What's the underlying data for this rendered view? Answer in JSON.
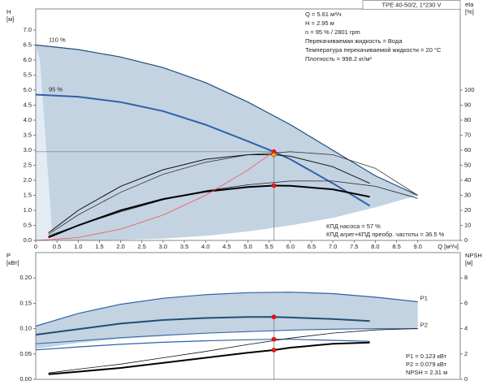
{
  "chart_data": [
    {
      "type": "line",
      "title": "TPE 40-50/2, 1*230 V",
      "ylabel": [
        "H",
        "[м]"
      ],
      "y2label": [
        "eta",
        "[%]"
      ],
      "xlabel": "Q [м³/ч]",
      "info": [
        "Q = 5.61 м³/ч",
        "H = 2.95 м",
        "n = 95 % / 2801 rpm",
        "Перекачиваемая жидкость = Вода",
        "Температура перекачиваемой жидкости = 20 °C",
        "Плотность = 998.2 кг/м³"
      ],
      "notes": [
        "КПД насоса = 57 %",
        "КПД агрег+КПД преобр. частоты = 36.5 %"
      ],
      "xlim": [
        0,
        10
      ],
      "ylim": [
        0,
        7.7
      ],
      "y2lim": [
        0,
        154
      ],
      "xticks": [
        0,
        0.5,
        {
          "value": 1,
          "label": "1.0"
        },
        1.5,
        {
          "value": 2,
          "label": "2.0"
        },
        2.5,
        {
          "value": 3,
          "label": "3.0"
        },
        3.5,
        {
          "value": 4,
          "label": "4.0"
        },
        4.5,
        {
          "value": 5,
          "label": "5.0"
        },
        5.5,
        {
          "value": 6,
          "label": "6.0"
        },
        6.5,
        {
          "value": 7,
          "label": "7.0"
        },
        7.5,
        {
          "value": 8,
          "label": "8.0"
        },
        8.5,
        {
          "value": 9,
          "label": "9.0"
        }
      ],
      "yticks": [
        {
          "value": 0,
          "label": "0.0"
        },
        0.5,
        {
          "value": 1,
          "label": "1.0"
        },
        1.5,
        {
          "value": 2,
          "label": "2.0"
        },
        2.5,
        {
          "value": 3,
          "label": "3.0"
        },
        3.5,
        {
          "value": 4,
          "label": "4.0"
        },
        4.5,
        {
          "value": 5,
          "label": "5.0"
        },
        5.5,
        {
          "value": 6,
          "label": "6.0"
        },
        6.5,
        {
          "value": 7,
          "label": "7.0"
        }
      ],
      "y2ticks": [
        0,
        10,
        20,
        30,
        40,
        50,
        60,
        70,
        80,
        90,
        100
      ],
      "grid": false,
      "series": [
        {
          "kind": "area",
          "color": "#e3ecf4",
          "x": [
            0,
            0.5,
            0.5,
            0
          ],
          "values": [
            0,
            0,
            6.45,
            6.5
          ]
        },
        {
          "kind": "area",
          "color": "#c3d3e2",
          "x": [
            0,
            1,
            2,
            3,
            4,
            5,
            6,
            7,
            8,
            9,
            8,
            7,
            6,
            5,
            4,
            3,
            2,
            1,
            0.4,
            0.3,
            0.2,
            0.1
          ],
          "values": [
            6.5,
            6.35,
            6.1,
            5.75,
            5.25,
            4.6,
            3.85,
            3.0,
            2.15,
            1.5,
            1.1,
            0.75,
            0.5,
            0.3,
            0.15,
            0.06,
            0.02,
            0,
            0,
            2,
            4,
            6
          ]
        },
        {
          "kind": "line",
          "name": "110 %",
          "color": "#1f4e79",
          "width": 1.2,
          "x": [
            0,
            1,
            2,
            3,
            4,
            5,
            6,
            7,
            8,
            9
          ],
          "values": [
            6.5,
            6.35,
            6.1,
            5.75,
            5.25,
            4.6,
            3.85,
            3.0,
            2.15,
            1.5
          ]
        },
        {
          "kind": "line",
          "name": "95 %",
          "color": "#2e62a8",
          "width": 2,
          "x": [
            0,
            1,
            2,
            3,
            4,
            5,
            5.61,
            6,
            7,
            7.87
          ],
          "values": [
            4.85,
            4.78,
            4.6,
            4.3,
            3.85,
            3.3,
            2.95,
            2.7,
            1.9,
            1.15
          ]
        },
        {
          "kind": "line",
          "axis": "y2",
          "color": "#333333",
          "width": 0.8,
          "x": [
            0.3,
            1,
            2,
            3,
            4,
            5,
            6,
            7,
            8,
            9
          ],
          "values": [
            4,
            17,
            32,
            44,
            52,
            57,
            59,
            57,
            48,
            30
          ]
        },
        {
          "kind": "line",
          "axis": "y2",
          "color": "#222222",
          "width": 0.8,
          "x": [
            0.3,
            1,
            2,
            3,
            4,
            5,
            6,
            7,
            8,
            9
          ],
          "values": [
            3,
            10,
            19,
            27,
            33,
            37,
            39.5,
            39.5,
            36,
            28
          ]
        },
        {
          "kind": "line",
          "axis": "y2",
          "color": "#111111",
          "width": 1,
          "x": [
            0.3,
            1,
            2,
            3,
            4,
            5,
            5.61,
            6,
            7,
            7.87
          ],
          "values": [
            5,
            20,
            36,
            47,
            54,
            57,
            57,
            56,
            49,
            38
          ]
        },
        {
          "kind": "line",
          "axis": "y2",
          "color": "#000000",
          "width": 2,
          "x": [
            0.3,
            1,
            2,
            3,
            4,
            5,
            5.61,
            6,
            7,
            7.87
          ],
          "values": [
            2,
            10,
            20,
            27.5,
            32.5,
            35.5,
            36.5,
            36.3,
            34,
            29
          ]
        },
        {
          "kind": "line",
          "color": "#ff5050",
          "width": 0.8,
          "x": [
            0,
            1,
            2,
            3,
            4,
            5,
            5.61
          ],
          "values": [
            0,
            0.094,
            0.375,
            0.844,
            1.5,
            2.343,
            2.95
          ]
        },
        {
          "kind": "marker",
          "axis": "y2",
          "color": "#ff0000",
          "x": [
            5.61
          ],
          "values": [
            36.5
          ]
        },
        {
          "kind": "marker",
          "color": "#ff0000",
          "guides": true,
          "x": [
            5.61
          ],
          "values": [
            2.95
          ]
        },
        {
          "kind": "marker",
          "axis": "y2",
          "color": "#ffcc00",
          "x": [
            5.61
          ],
          "values": [
            57
          ]
        }
      ]
    },
    {
      "type": "line",
      "ylabel": [
        "P",
        "[кВт]"
      ],
      "y2label": [
        "NPSH",
        "[м]"
      ],
      "info": [
        "P1 = 0.123 кВт",
        "P2 = 0.079 кВт",
        "NPSH = 2.31 м"
      ],
      "xlim": [
        0,
        10
      ],
      "ylim": [
        0,
        0.25
      ],
      "y2lim": [
        0,
        10
      ],
      "yticks": [
        {
          "value": 0,
          "label": "0.00"
        },
        0.05,
        {
          "value": 0.1,
          "label": "0.10"
        },
        0.15,
        {
          "value": 0.2,
          "label": "0.20"
        }
      ],
      "y2ticks": [
        0,
        2,
        4,
        6,
        8
      ],
      "grid": false,
      "series": [
        {
          "kind": "area",
          "color": "#c3d3e2",
          "x": [
            0,
            1,
            2,
            3,
            4,
            5,
            6,
            7,
            8,
            9,
            9,
            8,
            6,
            4,
            2,
            1,
            0
          ],
          "values": [
            0.105,
            0.13,
            0.148,
            0.16,
            0.167,
            0.171,
            0.172,
            0.169,
            0.162,
            0.153,
            0.1,
            0.099,
            0.096,
            0.09,
            0.08,
            0.072,
            0.06
          ]
        },
        {
          "kind": "line",
          "name": "P1",
          "color": "#2e62a8",
          "width": 1.2,
          "x": [
            0,
            1,
            2,
            3,
            4,
            5,
            6,
            7,
            8,
            9
          ],
          "values": [
            0.105,
            0.13,
            0.148,
            0.16,
            0.167,
            0.171,
            0.172,
            0.169,
            0.162,
            0.153
          ]
        },
        {
          "kind": "line",
          "color": "#1f4e79",
          "width": 2,
          "x": [
            0,
            1,
            2,
            3,
            4,
            5,
            5.61,
            6,
            7,
            7.87
          ],
          "values": [
            0.088,
            0.099,
            0.11,
            0.117,
            0.121,
            0.123,
            0.123,
            0.122,
            0.119,
            0.115
          ]
        },
        {
          "kind": "line",
          "name": "P2",
          "color": "#2e62a8",
          "width": 1,
          "x": [
            0,
            1,
            2,
            3,
            4,
            5,
            6,
            7,
            8,
            9
          ],
          "values": [
            0.07,
            0.076,
            0.082,
            0.087,
            0.091,
            0.094,
            0.097,
            0.099,
            0.1,
            0.1
          ]
        },
        {
          "kind": "line",
          "color": "#2e62a8",
          "width": 1.2,
          "x": [
            0,
            1,
            2,
            3,
            4,
            5,
            5.61,
            6,
            7,
            7.87
          ],
          "values": [
            0.058,
            0.064,
            0.069,
            0.073,
            0.076,
            0.078,
            0.079,
            0.079,
            0.077,
            0.075
          ]
        },
        {
          "kind": "line",
          "axis": "y2",
          "color": "#111111",
          "width": 0.8,
          "x": [
            0.3,
            1,
            2,
            3,
            4,
            5,
            6,
            7,
            8,
            9
          ],
          "values": [
            0.5,
            0.8,
            1.2,
            1.7,
            2.2,
            2.75,
            3.25,
            3.65,
            3.9,
            4.0
          ]
        },
        {
          "kind": "line",
          "axis": "y2",
          "color": "#000000",
          "width": 2,
          "x": [
            0.3,
            1,
            2,
            3,
            4,
            5,
            5.61,
            6,
            7,
            7.87
          ],
          "values": [
            0.4,
            0.6,
            0.9,
            1.3,
            1.7,
            2.1,
            2.31,
            2.5,
            2.8,
            2.9
          ]
        },
        {
          "kind": "marker",
          "color": "#ff0000",
          "guides": true,
          "x": [
            5.61
          ],
          "values": [
            0.123
          ]
        },
        {
          "kind": "marker",
          "color": "#ff0000",
          "x": [
            5.61
          ],
          "values": [
            0.079
          ]
        },
        {
          "kind": "marker",
          "axis": "y2",
          "color": "#ff0000",
          "x": [
            5.61
          ],
          "values": [
            2.31
          ]
        }
      ]
    }
  ]
}
